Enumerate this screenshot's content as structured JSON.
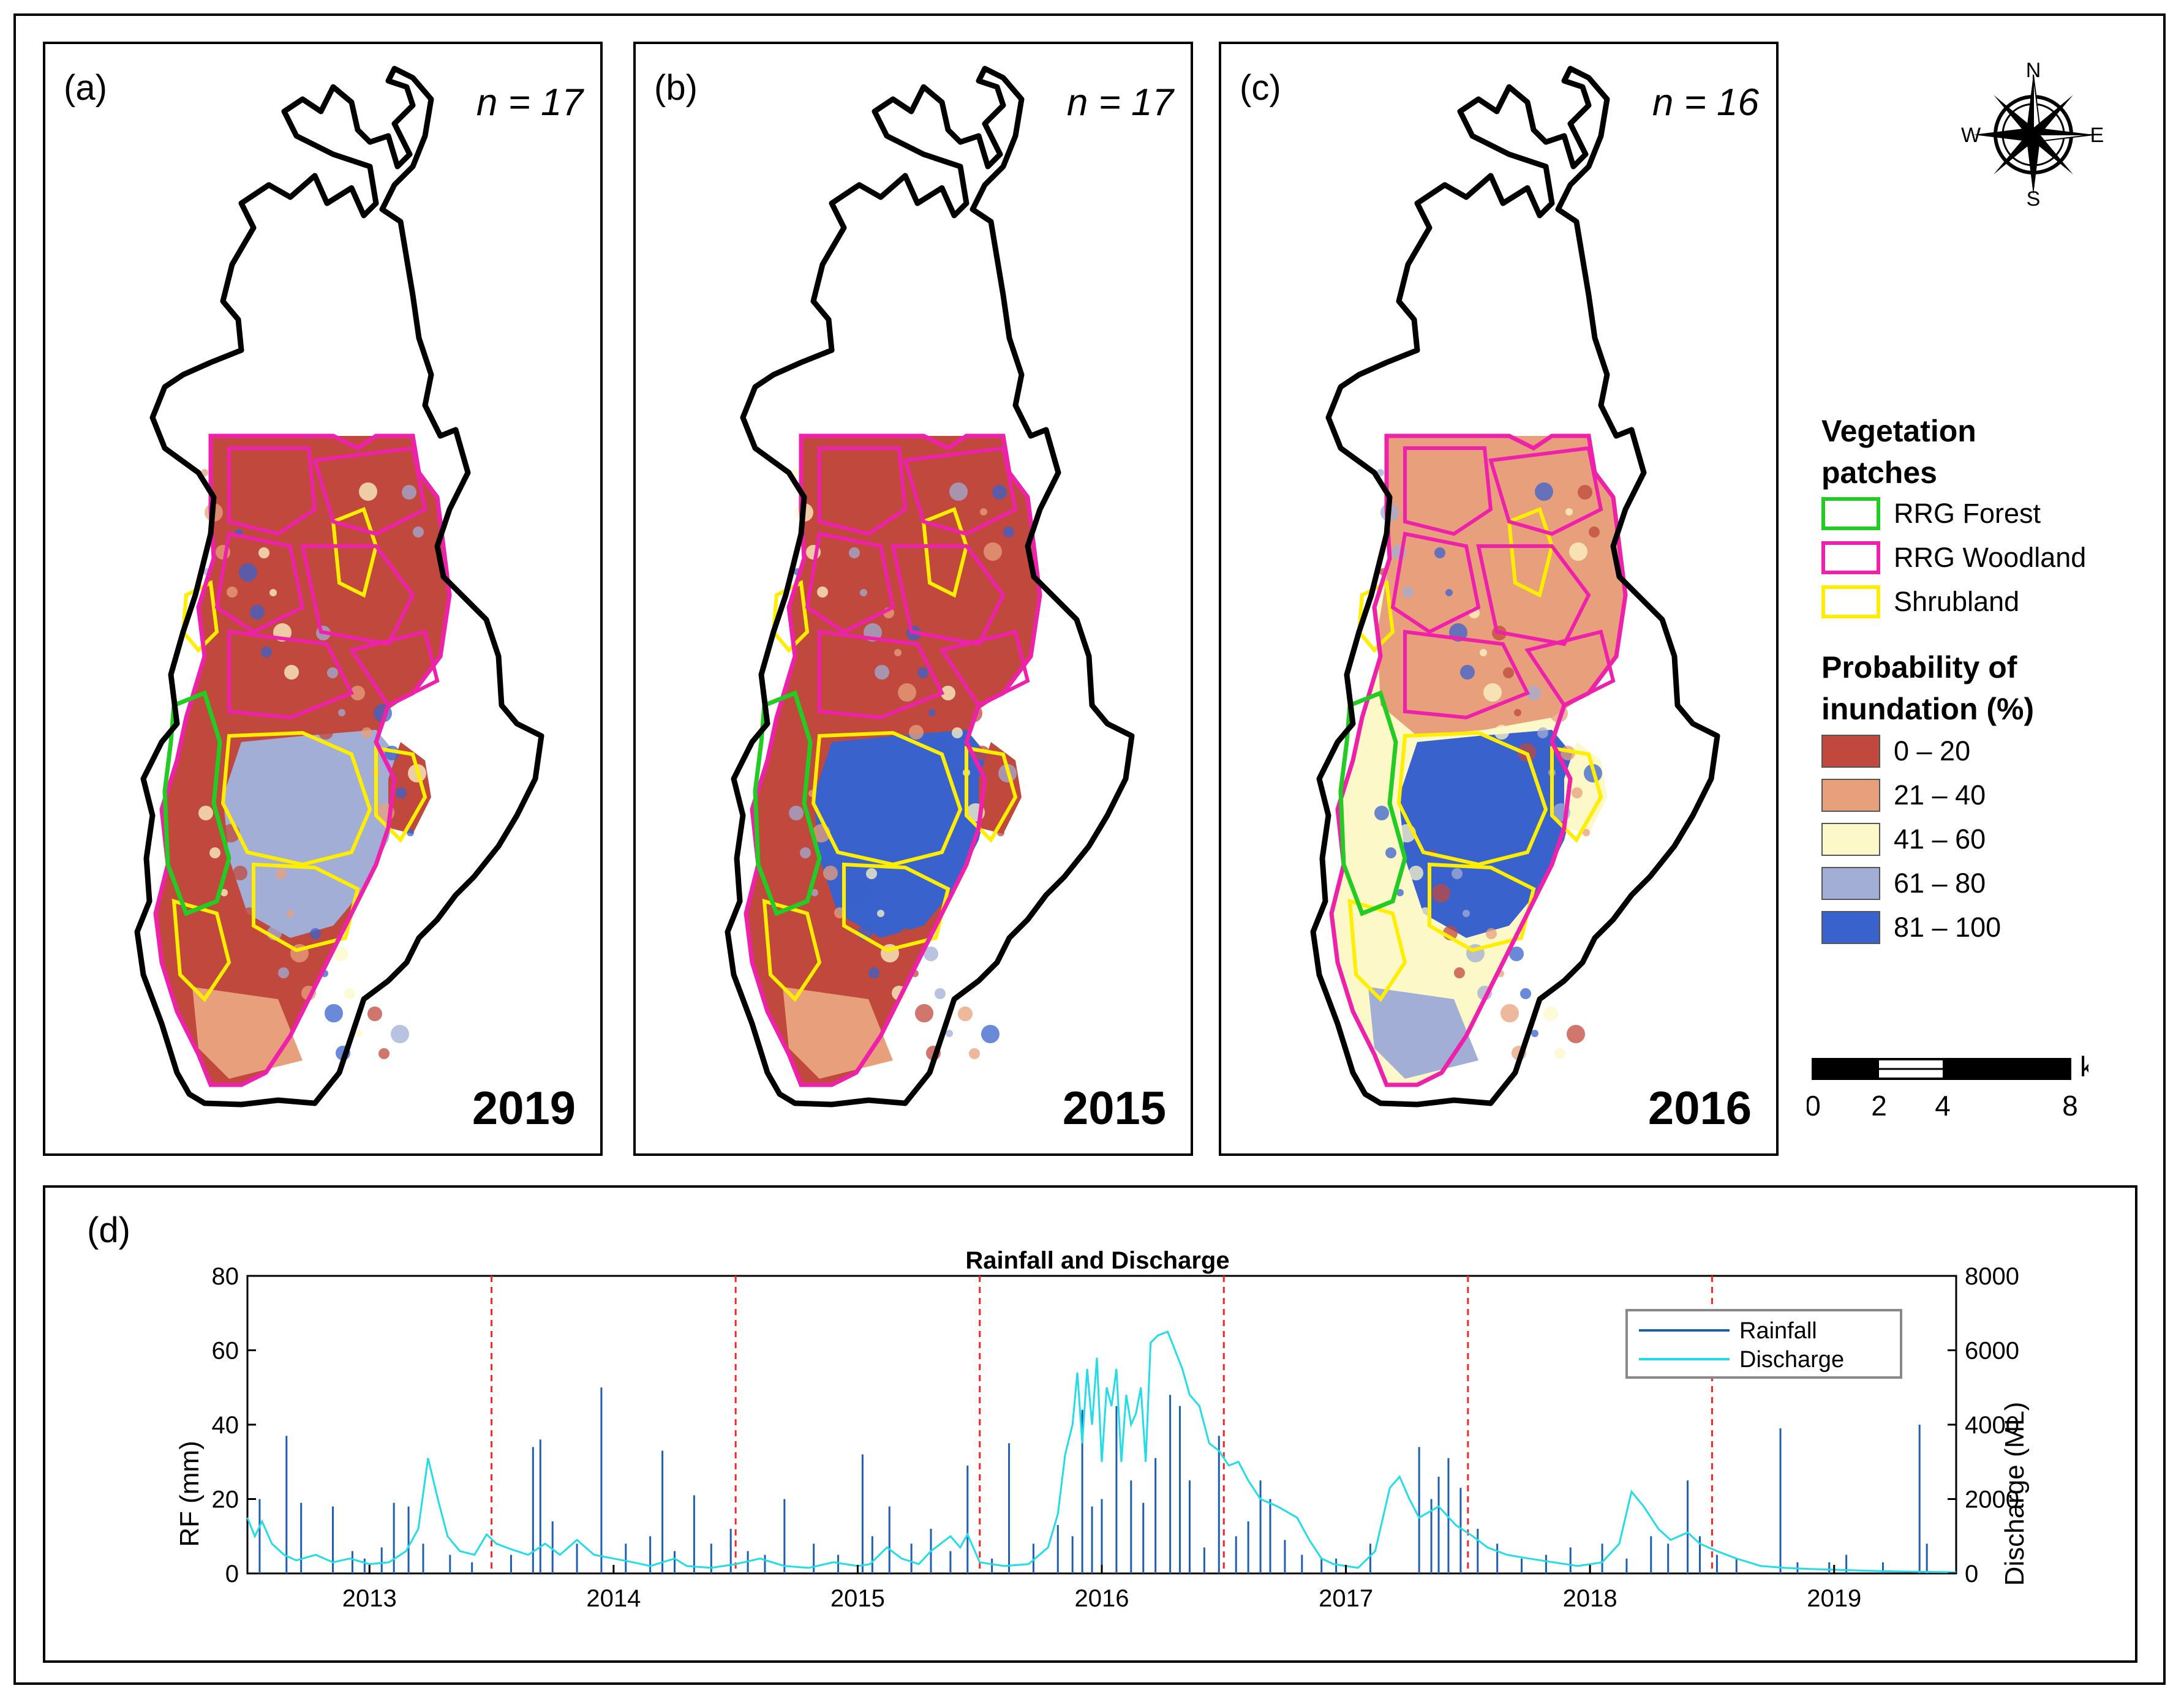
{
  "maps": [
    {
      "label": "(a)",
      "n": "n = 17",
      "year": "2019"
    },
    {
      "label": "(b)",
      "n": "n = 17",
      "year": "2015"
    },
    {
      "label": "(c)",
      "n": "n = 16",
      "year": "2016"
    }
  ],
  "compass": {
    "n": "N",
    "s": "S",
    "e": "E",
    "w": "W"
  },
  "legend": {
    "veg_title": "Vegetation patches",
    "veg_items": [
      {
        "label": "RRG Forest",
        "color": "#22cc22"
      },
      {
        "label": "RRG Woodland",
        "color": "#ee22aa"
      },
      {
        "label": "Shrubland",
        "color": "#ffee00"
      }
    ],
    "prob_title": "Probability of inundation (%)",
    "prob_items": [
      {
        "label": "0 – 20",
        "color": "#c0483c"
      },
      {
        "label": "21 – 40",
        "color": "#e8a07c"
      },
      {
        "label": "41 – 60",
        "color": "#fdf8c8"
      },
      {
        "label": "61 – 80",
        "color": "#a2aed6"
      },
      {
        "label": "81 – 100",
        "color": "#3a62cc"
      }
    ]
  },
  "scalebar": {
    "unit": "km",
    "ticks": [
      "0",
      "2",
      "4",
      "8"
    ]
  },
  "chart_data": {
    "label": "(d)",
    "type": "line",
    "title": "Rainfall and Discharge",
    "ylabel_left": "RF (mm)",
    "ylabel_right": "Discharge (ML)",
    "ylim_left": [
      0,
      80
    ],
    "ylim_right": [
      0,
      8000
    ],
    "xlim": [
      2012.5,
      2019.5
    ],
    "yticks_left": [
      "0",
      "20",
      "40",
      "60",
      "80"
    ],
    "yticks_right": [
      "0",
      "2000",
      "4000",
      "6000",
      "8000"
    ],
    "xticks": [
      "2013",
      "2014",
      "2015",
      "2016",
      "2017",
      "2018",
      "2019"
    ],
    "year_boundaries": [
      2013.5,
      2014.5,
      2015.5,
      2016.5,
      2017.5,
      2018.5
    ],
    "legend": [
      "Rainfall",
      "Discharge"
    ],
    "series": [
      {
        "name": "Rainfall",
        "color": "#1f5fb0",
        "points": [
          [
            2012.55,
            20
          ],
          [
            2012.66,
            37
          ],
          [
            2012.72,
            19
          ],
          [
            2012.85,
            18
          ],
          [
            2012.93,
            6
          ],
          [
            2012.98,
            4
          ],
          [
            2013.05,
            7
          ],
          [
            2013.1,
            19
          ],
          [
            2013.16,
            18
          ],
          [
            2013.22,
            8
          ],
          [
            2013.33,
            5
          ],
          [
            2013.42,
            3
          ],
          [
            2013.58,
            5
          ],
          [
            2013.67,
            34
          ],
          [
            2013.7,
            36
          ],
          [
            2013.75,
            14
          ],
          [
            2013.85,
            8
          ],
          [
            2013.95,
            50
          ],
          [
            2014.05,
            8
          ],
          [
            2014.15,
            10
          ],
          [
            2014.2,
            33
          ],
          [
            2014.25,
            6
          ],
          [
            2014.33,
            21
          ],
          [
            2014.4,
            8
          ],
          [
            2014.48,
            12
          ],
          [
            2014.55,
            6
          ],
          [
            2014.62,
            5
          ],
          [
            2014.7,
            20
          ],
          [
            2014.82,
            8
          ],
          [
            2014.92,
            5
          ],
          [
            2015.02,
            32
          ],
          [
            2015.06,
            10
          ],
          [
            2015.13,
            18
          ],
          [
            2015.22,
            8
          ],
          [
            2015.3,
            12
          ],
          [
            2015.38,
            6
          ],
          [
            2015.45,
            29
          ],
          [
            2015.55,
            4
          ],
          [
            2015.62,
            35
          ],
          [
            2015.72,
            8
          ],
          [
            2015.82,
            13
          ],
          [
            2015.88,
            10
          ],
          [
            2015.92,
            44
          ],
          [
            2015.96,
            18
          ],
          [
            2016.0,
            20
          ],
          [
            2016.06,
            45
          ],
          [
            2016.12,
            25
          ],
          [
            2016.17,
            19
          ],
          [
            2016.22,
            31
          ],
          [
            2016.28,
            48
          ],
          [
            2016.32,
            45
          ],
          [
            2016.36,
            25
          ],
          [
            2016.42,
            7
          ],
          [
            2016.48,
            37
          ],
          [
            2016.55,
            10
          ],
          [
            2016.6,
            14
          ],
          [
            2016.65,
            25
          ],
          [
            2016.69,
            20
          ],
          [
            2016.75,
            9
          ],
          [
            2016.82,
            5
          ],
          [
            2016.9,
            4
          ],
          [
            2016.96,
            4
          ],
          [
            2017.1,
            8
          ],
          [
            2017.3,
            34
          ],
          [
            2017.35,
            20
          ],
          [
            2017.38,
            26
          ],
          [
            2017.42,
            31
          ],
          [
            2017.47,
            23
          ],
          [
            2017.54,
            12
          ],
          [
            2017.62,
            8
          ],
          [
            2017.72,
            4
          ],
          [
            2017.82,
            5
          ],
          [
            2017.92,
            7
          ],
          [
            2018.05,
            8
          ],
          [
            2018.15,
            4
          ],
          [
            2018.25,
            10
          ],
          [
            2018.32,
            8
          ],
          [
            2018.4,
            25
          ],
          [
            2018.45,
            10
          ],
          [
            2018.52,
            5
          ],
          [
            2018.6,
            4
          ],
          [
            2018.78,
            39
          ],
          [
            2018.85,
            3
          ],
          [
            2018.98,
            3
          ],
          [
            2019.05,
            5
          ],
          [
            2019.2,
            3
          ],
          [
            2019.35,
            40
          ],
          [
            2019.38,
            8
          ]
        ]
      },
      {
        "name": "Discharge",
        "color": "#22dde8",
        "points": [
          [
            2012.5,
            1500
          ],
          [
            2012.53,
            1000
          ],
          [
            2012.56,
            1400
          ],
          [
            2012.6,
            800
          ],
          [
            2012.65,
            500
          ],
          [
            2012.7,
            350
          ],
          [
            2012.78,
            500
          ],
          [
            2012.85,
            300
          ],
          [
            2012.92,
            400
          ],
          [
            2013.0,
            250
          ],
          [
            2013.08,
            300
          ],
          [
            2013.15,
            600
          ],
          [
            2013.2,
            1200
          ],
          [
            2013.24,
            3100
          ],
          [
            2013.28,
            2000
          ],
          [
            2013.32,
            1000
          ],
          [
            2013.37,
            600
          ],
          [
            2013.43,
            500
          ],
          [
            2013.48,
            1050
          ],
          [
            2013.52,
            800
          ],
          [
            2013.58,
            650
          ],
          [
            2013.65,
            500
          ],
          [
            2013.72,
            800
          ],
          [
            2013.78,
            500
          ],
          [
            2013.85,
            900
          ],
          [
            2013.92,
            500
          ],
          [
            2014.0,
            400
          ],
          [
            2014.08,
            300
          ],
          [
            2014.15,
            200
          ],
          [
            2014.25,
            400
          ],
          [
            2014.3,
            200
          ],
          [
            2014.4,
            150
          ],
          [
            2014.5,
            250
          ],
          [
            2014.6,
            400
          ],
          [
            2014.7,
            200
          ],
          [
            2014.8,
            150
          ],
          [
            2014.9,
            300
          ],
          [
            2015.0,
            200
          ],
          [
            2015.05,
            250
          ],
          [
            2015.12,
            700
          ],
          [
            2015.18,
            400
          ],
          [
            2015.25,
            250
          ],
          [
            2015.3,
            600
          ],
          [
            2015.38,
            1000
          ],
          [
            2015.42,
            700
          ],
          [
            2015.45,
            1050
          ],
          [
            2015.5,
            300
          ],
          [
            2015.6,
            200
          ],
          [
            2015.7,
            250
          ],
          [
            2015.78,
            700
          ],
          [
            2015.82,
            1600
          ],
          [
            2015.85,
            3200
          ],
          [
            2015.88,
            4000
          ],
          [
            2015.9,
            5400
          ],
          [
            2015.92,
            3500
          ],
          [
            2015.94,
            5500
          ],
          [
            2015.96,
            4000
          ],
          [
            2015.98,
            5800
          ],
          [
            2016.0,
            3000
          ],
          [
            2016.02,
            5000
          ],
          [
            2016.04,
            4500
          ],
          [
            2016.06,
            5500
          ],
          [
            2016.08,
            3000
          ],
          [
            2016.1,
            4800
          ],
          [
            2016.12,
            4000
          ],
          [
            2016.14,
            4300
          ],
          [
            2016.16,
            5000
          ],
          [
            2016.18,
            3000
          ],
          [
            2016.2,
            6200
          ],
          [
            2016.23,
            6400
          ],
          [
            2016.27,
            6500
          ],
          [
            2016.3,
            6000
          ],
          [
            2016.33,
            5500
          ],
          [
            2016.36,
            4800
          ],
          [
            2016.4,
            4500
          ],
          [
            2016.44,
            3500
          ],
          [
            2016.48,
            3300
          ],
          [
            2016.52,
            2900
          ],
          [
            2016.56,
            3000
          ],
          [
            2016.6,
            2500
          ],
          [
            2016.65,
            2000
          ],
          [
            2016.72,
            1800
          ],
          [
            2016.8,
            1500
          ],
          [
            2016.85,
            900
          ],
          [
            2016.9,
            400
          ],
          [
            2016.95,
            250
          ],
          [
            2017.0,
            200
          ],
          [
            2017.05,
            150
          ],
          [
            2017.12,
            600
          ],
          [
            2017.18,
            2300
          ],
          [
            2017.22,
            2600
          ],
          [
            2017.26,
            2000
          ],
          [
            2017.3,
            1500
          ],
          [
            2017.38,
            1800
          ],
          [
            2017.45,
            1300
          ],
          [
            2017.52,
            1000
          ],
          [
            2017.58,
            700
          ],
          [
            2017.66,
            500
          ],
          [
            2017.75,
            400
          ],
          [
            2017.85,
            300
          ],
          [
            2017.95,
            200
          ],
          [
            2018.05,
            300
          ],
          [
            2018.12,
            800
          ],
          [
            2018.17,
            2200
          ],
          [
            2018.22,
            1800
          ],
          [
            2018.28,
            1200
          ],
          [
            2018.33,
            900
          ],
          [
            2018.4,
            1100
          ],
          [
            2018.45,
            800
          ],
          [
            2018.52,
            600
          ],
          [
            2018.6,
            400
          ],
          [
            2018.7,
            200
          ],
          [
            2018.8,
            150
          ],
          [
            2018.9,
            120
          ],
          [
            2019.0,
            100
          ],
          [
            2019.1,
            80
          ],
          [
            2019.2,
            60
          ],
          [
            2019.3,
            50
          ],
          [
            2019.4,
            40
          ],
          [
            2019.5,
            30
          ]
        ]
      }
    ]
  }
}
